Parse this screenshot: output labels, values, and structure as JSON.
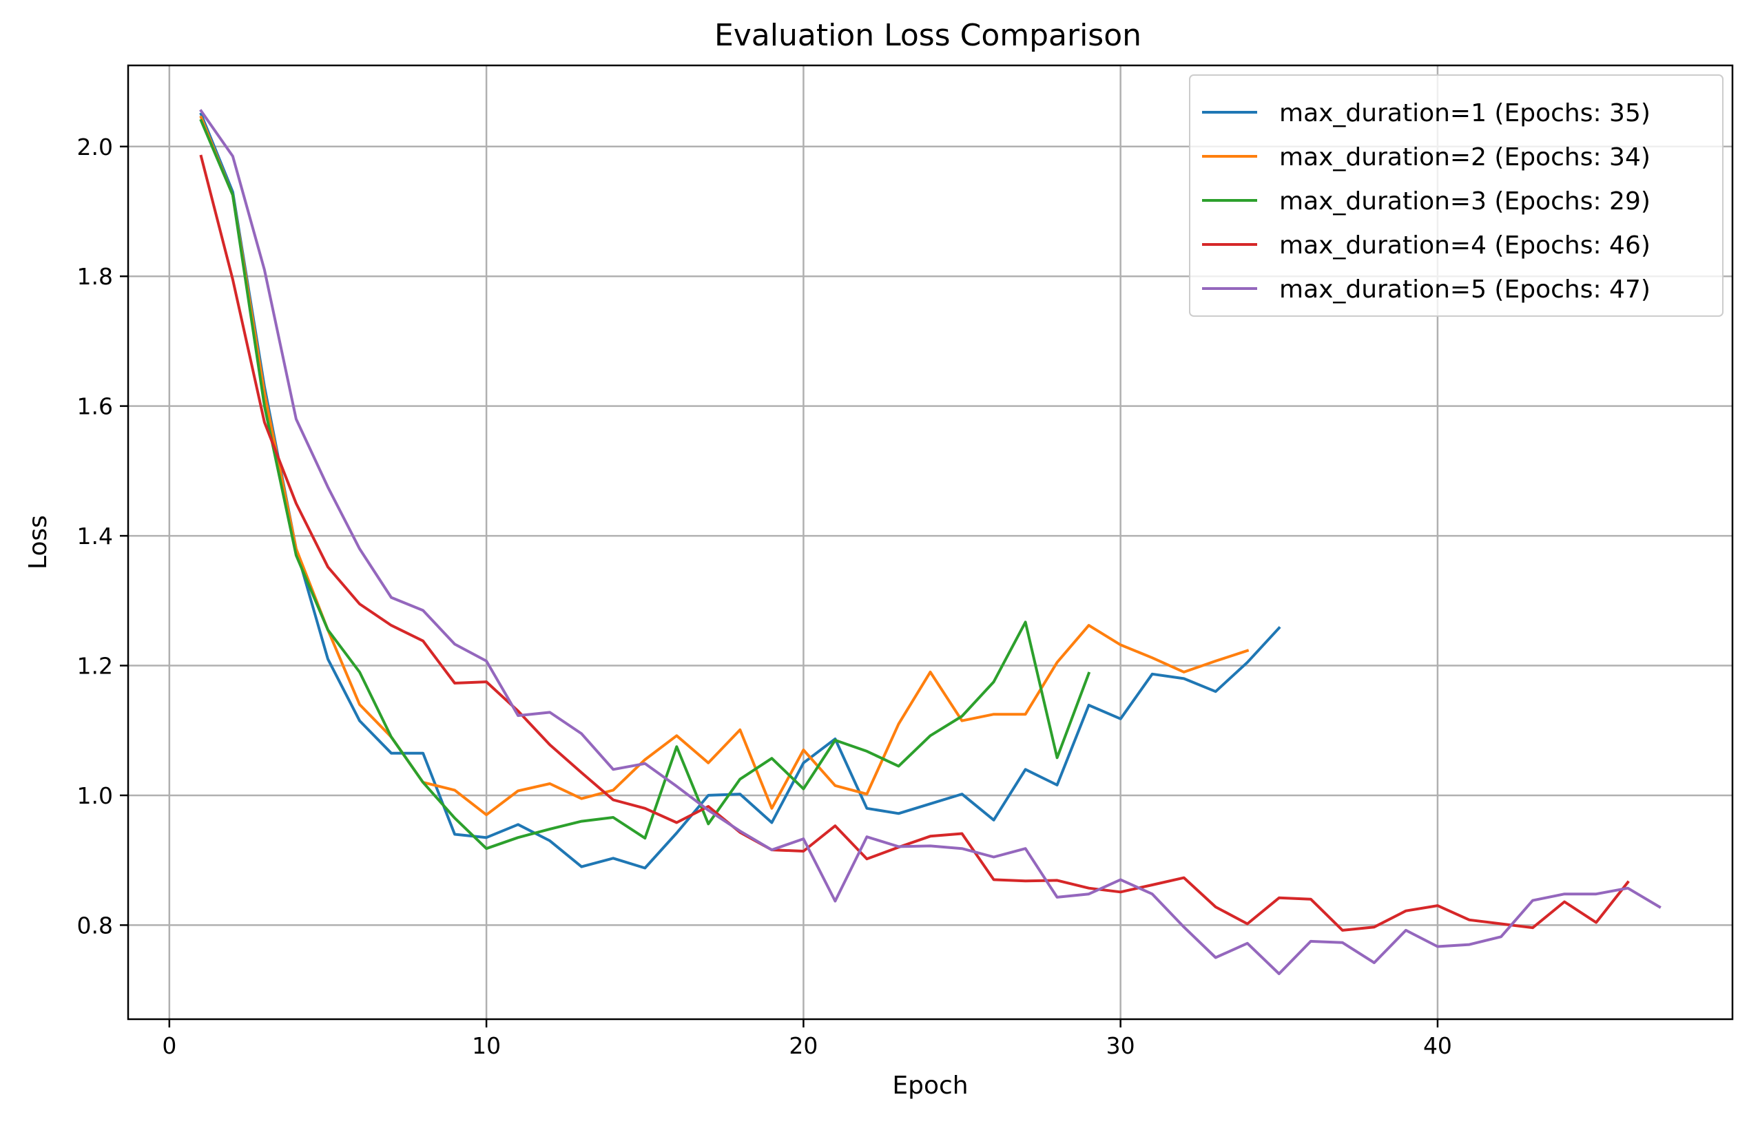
{
  "chart_data": {
    "type": "line",
    "title": "Evaluation Loss Comparison",
    "xlabel": "Epoch",
    "ylabel": "Loss",
    "xlim": [
      -1.3,
      49.3
    ],
    "ylim": [
      0.655,
      2.125
    ],
    "xticks": [
      0,
      10,
      20,
      30,
      40
    ],
    "yticks": [
      0.8,
      1.0,
      1.2,
      1.4,
      1.6,
      1.8,
      2.0
    ],
    "ytick_labels": [
      "0.8",
      "1.0",
      "1.2",
      "1.4",
      "1.6",
      "1.8",
      "2.0"
    ],
    "grid": true,
    "legend_position": "upper right",
    "series": [
      {
        "name": "max_duration=1 (Epochs: 35)",
        "color": "#1f77b4",
        "values": [
          2.05,
          1.93,
          1.63,
          1.38,
          1.21,
          1.115,
          1.065,
          1.065,
          0.94,
          0.935,
          0.955,
          0.93,
          0.89,
          0.903,
          0.888,
          0.942,
          1.0,
          1.002,
          0.958,
          1.05,
          1.087,
          0.98,
          0.972,
          0.987,
          1.002,
          0.962,
          1.04,
          1.016,
          1.139,
          1.118,
          1.187,
          1.18,
          1.16,
          1.205,
          1.258
        ]
      },
      {
        "name": "max_duration=2 (Epochs: 34)",
        "color": "#ff7f0e",
        "values": [
          2.045,
          1.925,
          1.62,
          1.38,
          1.255,
          1.14,
          1.09,
          1.02,
          1.008,
          0.97,
          1.007,
          1.018,
          0.995,
          1.008,
          1.055,
          1.092,
          1.05,
          1.101,
          0.98,
          1.07,
          1.015,
          1.002,
          1.11,
          1.19,
          1.115,
          1.125,
          1.125,
          1.205,
          1.262,
          1.232,
          1.212,
          1.19,
          1.207,
          1.223
        ]
      },
      {
        "name": "max_duration=3 (Epochs: 29)",
        "color": "#2ca02c",
        "values": [
          2.04,
          1.925,
          1.6,
          1.37,
          1.255,
          1.19,
          1.09,
          1.02,
          0.965,
          0.918,
          0.935,
          0.948,
          0.96,
          0.966,
          0.934,
          1.075,
          0.956,
          1.025,
          1.057,
          1.01,
          1.085,
          1.068,
          1.045,
          1.092,
          1.122,
          1.175,
          1.267,
          1.058,
          1.188
        ]
      },
      {
        "name": "max_duration=4 (Epochs: 46)",
        "color": "#d62728",
        "values": [
          1.985,
          1.795,
          1.575,
          1.45,
          1.352,
          1.295,
          1.262,
          1.238,
          1.173,
          1.175,
          1.13,
          1.078,
          1.035,
          0.993,
          0.98,
          0.958,
          0.983,
          0.943,
          0.916,
          0.914,
          0.953,
          0.902,
          0.92,
          0.937,
          0.941,
          0.87,
          0.868,
          0.869,
          0.857,
          0.851,
          0.862,
          0.873,
          0.828,
          0.802,
          0.842,
          0.84,
          0.792,
          0.797,
          0.822,
          0.83,
          0.808,
          0.802,
          0.796,
          0.836,
          0.804,
          0.866
        ]
      },
      {
        "name": "max_duration=5 (Epochs: 47)",
        "color": "#9467bd",
        "values": [
          2.055,
          1.985,
          1.81,
          1.58,
          1.475,
          1.38,
          1.305,
          1.285,
          1.233,
          1.207,
          1.123,
          1.128,
          1.095,
          1.04,
          1.049,
          1.014,
          0.977,
          0.945,
          0.916,
          0.933,
          0.837,
          0.936,
          0.921,
          0.922,
          0.918,
          0.905,
          0.918,
          0.843,
          0.848,
          0.87,
          0.848,
          0.797,
          0.75,
          0.772,
          0.725,
          0.775,
          0.773,
          0.742,
          0.792,
          0.767,
          0.77,
          0.782,
          0.838,
          0.848,
          0.848,
          0.857,
          0.828
        ]
      }
    ]
  }
}
